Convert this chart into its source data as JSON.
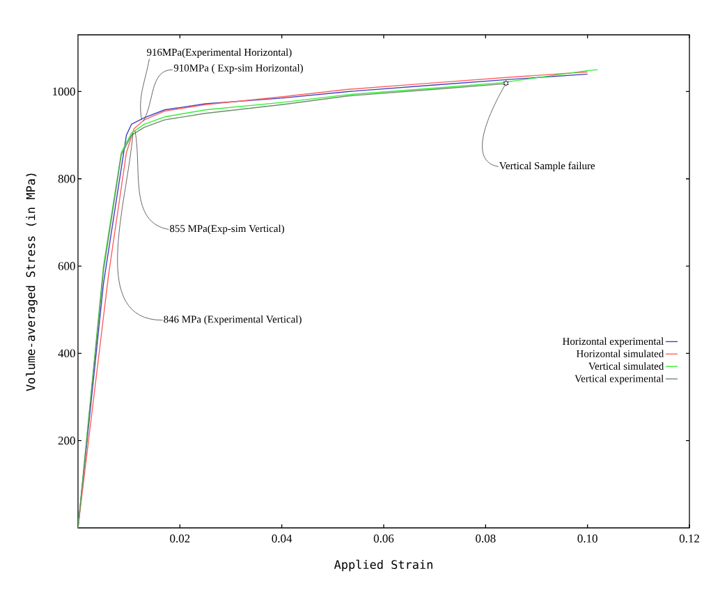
{
  "chart_data": {
    "type": "line",
    "xlabel": "Applied Strain",
    "ylabel": "Volume-averaged Stress (in MPa)",
    "xlim": [
      0,
      0.12
    ],
    "ylim": [
      0,
      1130
    ],
    "xticks": [
      {
        "value": 0.02,
        "label": "0.02"
      },
      {
        "value": 0.04,
        "label": "0.04"
      },
      {
        "value": 0.06,
        "label": "0.06"
      },
      {
        "value": 0.08,
        "label": "0.08"
      },
      {
        "value": 0.1,
        "label": "0.10"
      },
      {
        "value": 0.12,
        "label": "0.12"
      }
    ],
    "yticks": [
      200,
      400,
      600,
      800,
      1000
    ],
    "legend": "right",
    "grid": false,
    "series": [
      {
        "name": "Horizontal experimental",
        "color": "#4040c0",
        "x": [
          0,
          0.005,
          0.0095,
          0.0105,
          0.013,
          0.017,
          0.025,
          0.04,
          0.053,
          0.07,
          0.085,
          0.1
        ],
        "values": [
          0,
          560,
          900,
          925,
          940,
          958,
          972,
          985,
          1000,
          1015,
          1028,
          1040
        ]
      },
      {
        "name": "Horizontal simulated",
        "color": "#ff6060",
        "x": [
          0,
          0.006,
          0.0095,
          0.011,
          0.013,
          0.017,
          0.025,
          0.04,
          0.053,
          0.07,
          0.085,
          0.1
        ],
        "values": [
          0,
          580,
          860,
          915,
          935,
          955,
          970,
          988,
          1005,
          1020,
          1033,
          1045
        ]
      },
      {
        "name": "Vertical simulated",
        "color": "#33ee33",
        "x": [
          0,
          0.005,
          0.0085,
          0.0105,
          0.013,
          0.017,
          0.025,
          0.04,
          0.053,
          0.07,
          0.083,
          0.1,
          0.102
        ],
        "values": [
          0,
          600,
          860,
          905,
          925,
          942,
          958,
          975,
          993,
          1008,
          1020,
          1048,
          1050
        ]
      },
      {
        "name": "Vertical experimental",
        "color": "#6b8e6b",
        "x": [
          0,
          0.005,
          0.0085,
          0.0105,
          0.013,
          0.017,
          0.025,
          0.04,
          0.053,
          0.07,
          0.084
        ],
        "values": [
          0,
          590,
          855,
          900,
          918,
          935,
          950,
          970,
          990,
          1005,
          1018
        ]
      }
    ],
    "annotations": [
      {
        "text": "916MPa(Experimental Horizontal)",
        "x": 0.0125,
        "y": 935
      },
      {
        "text": "910MPa ( Exp-sim Horizontal)",
        "x": 0.0128,
        "y": 932
      },
      {
        "text": "855 MPa(Exp-sim Vertical)",
        "x": 0.0112,
        "y": 910
      },
      {
        "text": "846 MPa (Experimental Vertical)",
        "x": 0.0108,
        "y": 905
      },
      {
        "text": "Vertical Sample failure",
        "x": 0.084,
        "y": 1019
      }
    ]
  }
}
